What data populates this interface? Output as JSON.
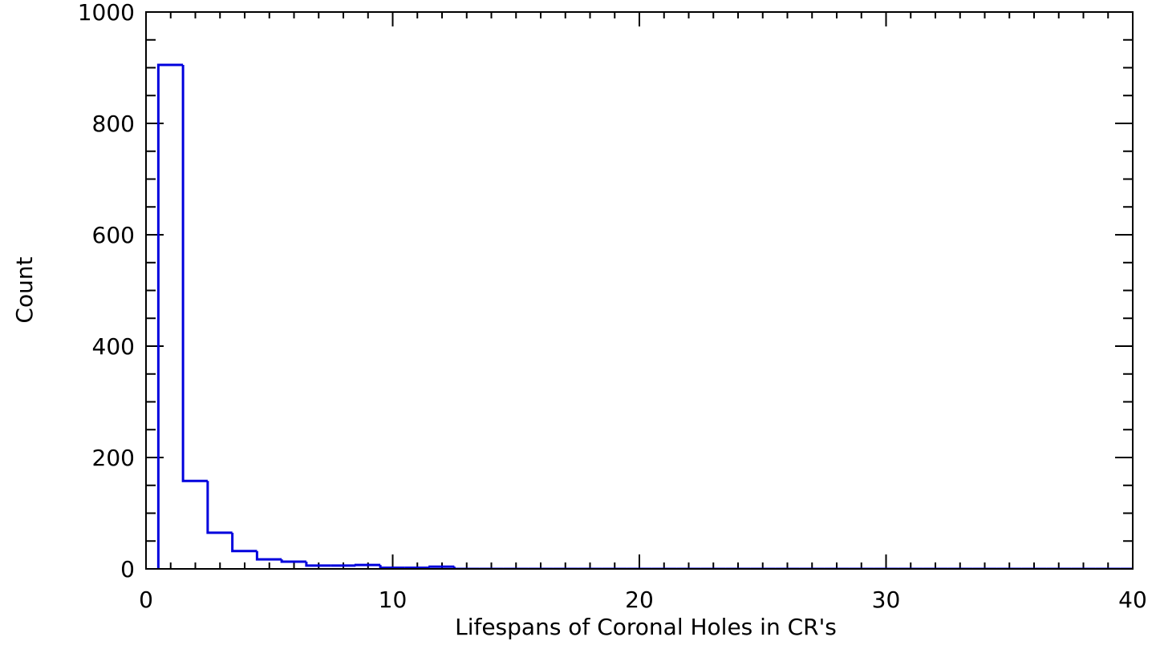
{
  "chart_data": {
    "type": "histogram",
    "x_label": "Lifespans of Coronal Holes in CR's",
    "y_label": "Count",
    "bins": [
      0.5,
      1.5,
      2.5,
      3.5,
      4.5,
      5.5,
      6.5,
      7.5,
      8.5,
      9.5,
      10.5,
      11.5,
      12.5,
      13.5,
      14.5,
      15.5,
      16.5,
      17.5,
      18.5,
      19.5,
      20.5,
      21.5,
      22.5,
      23.5,
      24.5,
      25.5,
      26.5,
      27.5,
      28.5,
      29.5,
      30.5,
      31.5,
      32.5,
      33.5,
      34.5,
      35.5,
      36.5,
      37.5,
      38.5,
      39.5,
      40.5
    ],
    "values": [
      905,
      158,
      65,
      32,
      17,
      13,
      6,
      6,
      7,
      2,
      2,
      4,
      0,
      0,
      0,
      0,
      0,
      0,
      0,
      0,
      0,
      0,
      0,
      0,
      0,
      0,
      0,
      0,
      0,
      0,
      0,
      0,
      0,
      0,
      0,
      0,
      0,
      0,
      0,
      0
    ],
    "color": "#0000dd",
    "xlim": [
      0,
      40
    ],
    "xticks": [
      0,
      10,
      20,
      30,
      40
    ],
    "x_minor_step": 1,
    "ylim": [
      0,
      1000
    ],
    "yticks": [
      0,
      200,
      400,
      600,
      800,
      1000
    ],
    "y_minor_step": 50
  }
}
